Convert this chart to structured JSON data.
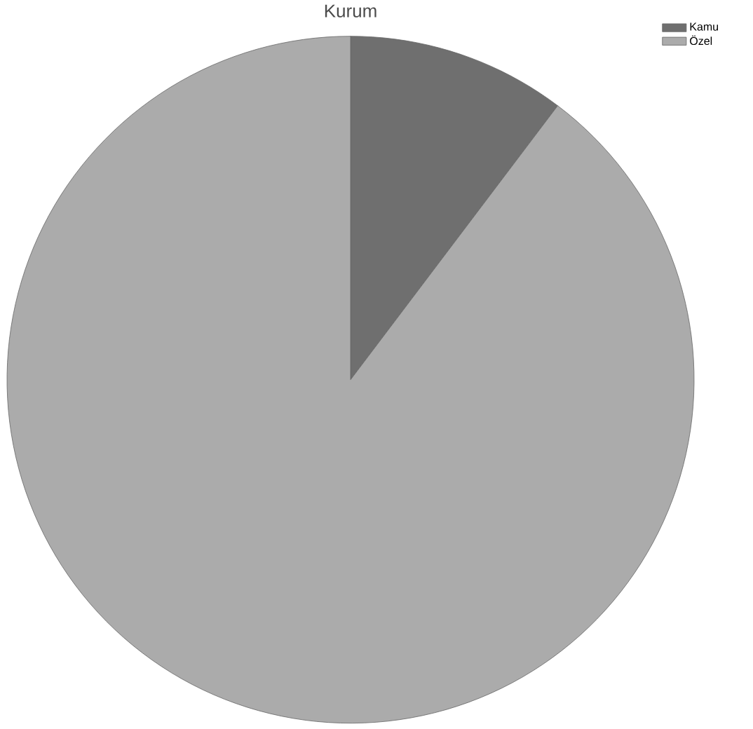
{
  "chart_data": {
    "type": "pie",
    "title": "Kurum",
    "categories": [
      "Kamu",
      "Özel"
    ],
    "values": [
      10.3,
      89.7
    ],
    "colors": [
      "#6f6f6f",
      "#ababab"
    ],
    "legend": "top right"
  }
}
